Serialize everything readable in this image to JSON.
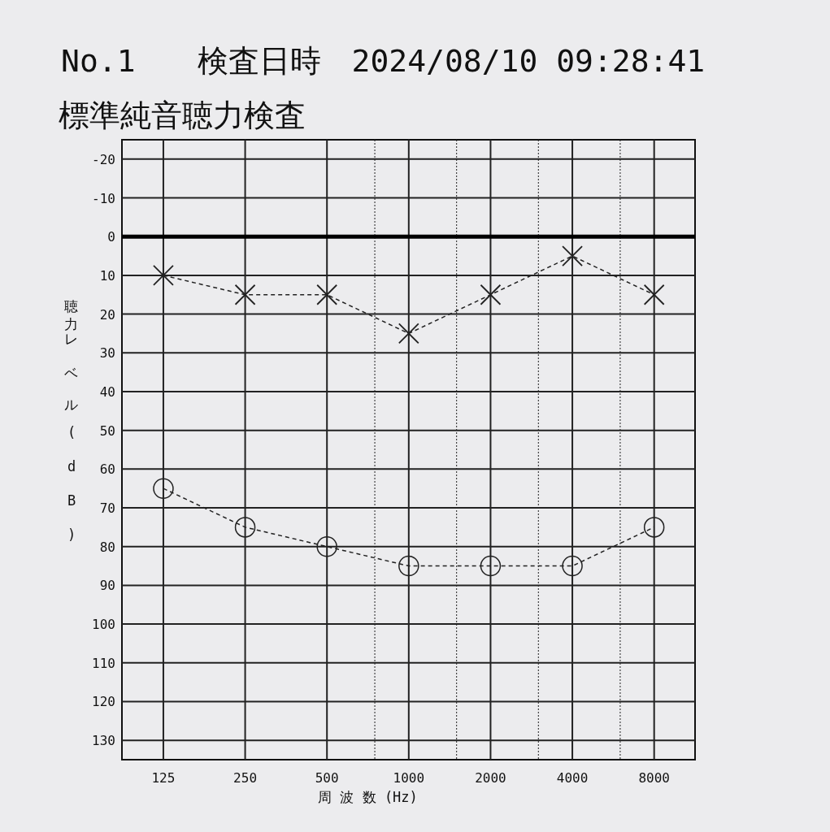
{
  "chart_data": {
    "type": "line",
    "title": "No.1　　検査日時　2024/08/10 09:28:41",
    "subtitle": "標準純音聴力検査",
    "xlabel": "周 波 数 (Hz)",
    "ylabel": "聴力レベル(dB)",
    "x": [
      125,
      250,
      500,
      1000,
      2000,
      4000,
      8000
    ],
    "log": "x",
    "grid": true,
    "xlim": [
      88,
      11314
    ],
    "ylim": [
      135,
      -25
    ],
    "xticks": [
      125,
      250,
      500,
      {
        "value": 750,
        "label": null
      },
      1000,
      {
        "value": 1500,
        "label": null
      },
      2000,
      {
        "value": 3000,
        "label": null
      },
      4000,
      {
        "value": 6000,
        "label": null
      },
      8000
    ],
    "yticks": [
      -20,
      -10,
      0,
      10,
      20,
      30,
      40,
      50,
      60,
      70,
      80,
      90,
      100,
      110,
      120,
      130
    ],
    "ref_lines": [
      {
        "axis": "y",
        "value": 0,
        "label": null,
        "color": "#000000",
        "line_style": "solid"
      }
    ],
    "series": [
      {
        "color": "#222222",
        "marker": "cross",
        "line_style": "dashed",
        "values": [
          10,
          15,
          15,
          25,
          15,
          5,
          15
        ]
      },
      {
        "color": "#222222",
        "marker": "circle",
        "line_style": "dashed",
        "values": [
          65,
          75,
          80,
          85,
          85,
          85,
          75
        ]
      }
    ]
  }
}
